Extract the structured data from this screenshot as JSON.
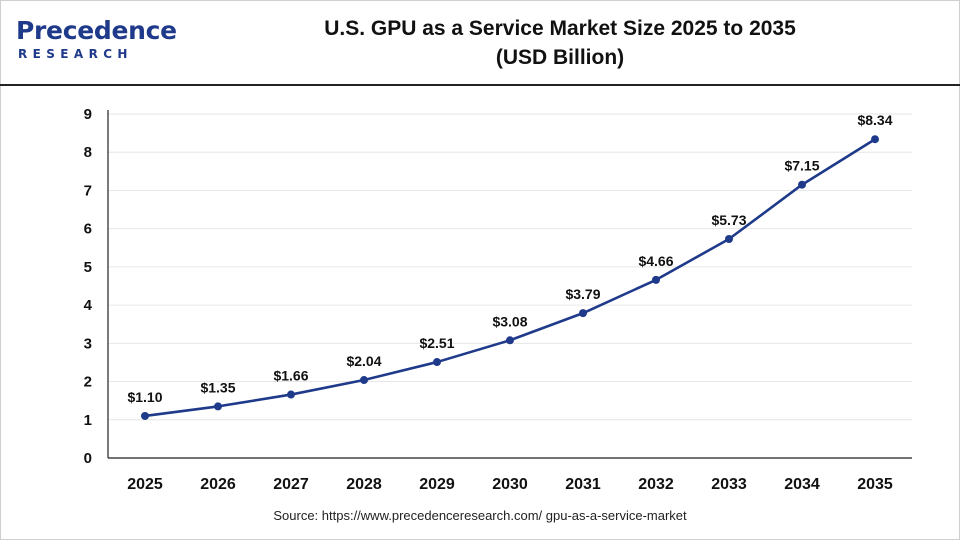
{
  "header": {
    "logo_main": "Precedence",
    "logo_sub": "RESEARCH",
    "title_line1": "U.S. GPU as a Service Market Size 2025 to 2035",
    "title_line2": "(USD Billion)"
  },
  "source": "Source: https://www.precedenceresearch.com/ gpu-as-a-service-market",
  "colors": {
    "line": "#1f3a8a",
    "axis": "#222222",
    "grid": "#e6e6e6",
    "brand": "#1f3a8a"
  },
  "chart_data": {
    "type": "line",
    "title": "U.S. GPU as a Service Market Size 2025 to 2035 (USD Billion)",
    "categories": [
      "2025",
      "2026",
      "2027",
      "2028",
      "2029",
      "2030",
      "2031",
      "2032",
      "2033",
      "2034",
      "2035"
    ],
    "values": [
      1.1,
      1.35,
      1.66,
      2.04,
      2.51,
      3.08,
      3.79,
      4.66,
      5.73,
      7.15,
      8.34
    ],
    "data_labels": [
      "$1.10",
      "$1.35",
      "$1.66",
      "$2.04",
      "$2.51",
      "$3.08",
      "$3.79",
      "$4.66",
      "$5.73",
      "$7.15",
      "$8.34"
    ],
    "yticks": [
      "0",
      "1",
      "2",
      "3",
      "4",
      "5",
      "6",
      "7",
      "8",
      "9"
    ],
    "ylim": [
      0,
      9
    ],
    "xlabel": "",
    "ylabel": "",
    "grid": true,
    "legend": "none"
  }
}
